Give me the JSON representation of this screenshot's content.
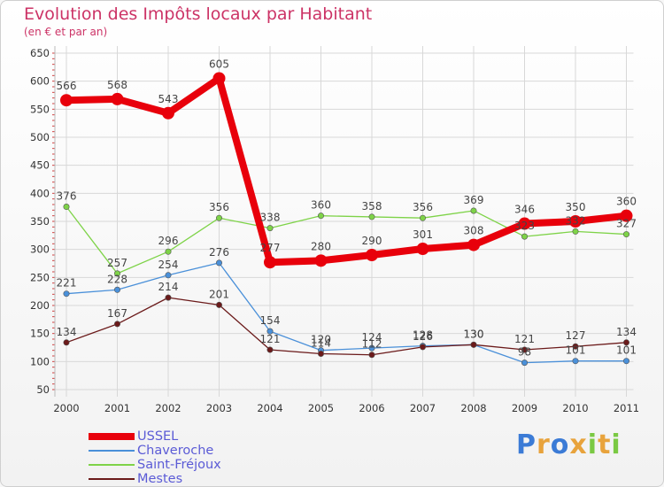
{
  "chart_data": {
    "type": "line",
    "title": "Evolution des Impôts locaux par Habitant",
    "subtitle": "(en € et par an)",
    "xlabel": "",
    "ylabel": "",
    "ylim": [
      50,
      650
    ],
    "yticks": [
      50,
      100,
      150,
      200,
      250,
      300,
      350,
      400,
      450,
      500,
      550,
      600,
      650
    ],
    "grid": true,
    "categories": [
      "2000",
      "2001",
      "2002",
      "2003",
      "2004",
      "2005",
      "2006",
      "2007",
      "2008",
      "2009",
      "2010",
      "2011"
    ],
    "series": [
      {
        "name": "USSEL",
        "color": "#e8000b",
        "values": [
          566,
          568,
          543,
          605,
          277,
          280,
          290,
          301,
          308,
          346,
          350,
          360
        ]
      },
      {
        "name": "Chaveroche",
        "color": "#4a90d9",
        "values": [
          221,
          228,
          254,
          276,
          154,
          120,
          124,
          128,
          130,
          98,
          101,
          101
        ]
      },
      {
        "name": "Saint-Fréjoux",
        "color": "#7ed348",
        "values": [
          376,
          257,
          296,
          356,
          338,
          360,
          358,
          356,
          369,
          323,
          332,
          327
        ]
      },
      {
        "name": "Mestes",
        "color": "#6b1a1a",
        "values": [
          134,
          167,
          214,
          201,
          121,
          114,
          112,
          126,
          130,
          121,
          127,
          134
        ]
      }
    ],
    "data_labels": [
      [
        "566",
        "568",
        "543",
        "605",
        "277",
        "280",
        "290",
        "301",
        "308",
        "346",
        "350",
        "360"
      ],
      [
        "221",
        "228",
        "254",
        "276",
        "154",
        "120",
        "124",
        "128",
        "130",
        "98",
        "101",
        "101"
      ],
      [
        "376",
        "257",
        "296",
        "356",
        "338",
        "360",
        "358",
        "356",
        "369",
        "323",
        "332",
        "327"
      ],
      [
        "134",
        "167",
        "214",
        "201",
        "121",
        "114",
        "112",
        "126",
        "130",
        "121",
        "127",
        "134"
      ]
    ],
    "legend_position": "bottom-left"
  },
  "logo": {
    "letters": [
      "P",
      "r",
      "o",
      "x",
      "i",
      "t",
      "i"
    ],
    "colors": [
      "#3b7bd6",
      "#e8a33c",
      "#3b7bd6",
      "#e8a33c",
      "#7ac943",
      "#e8a33c",
      "#7ac943"
    ]
  }
}
